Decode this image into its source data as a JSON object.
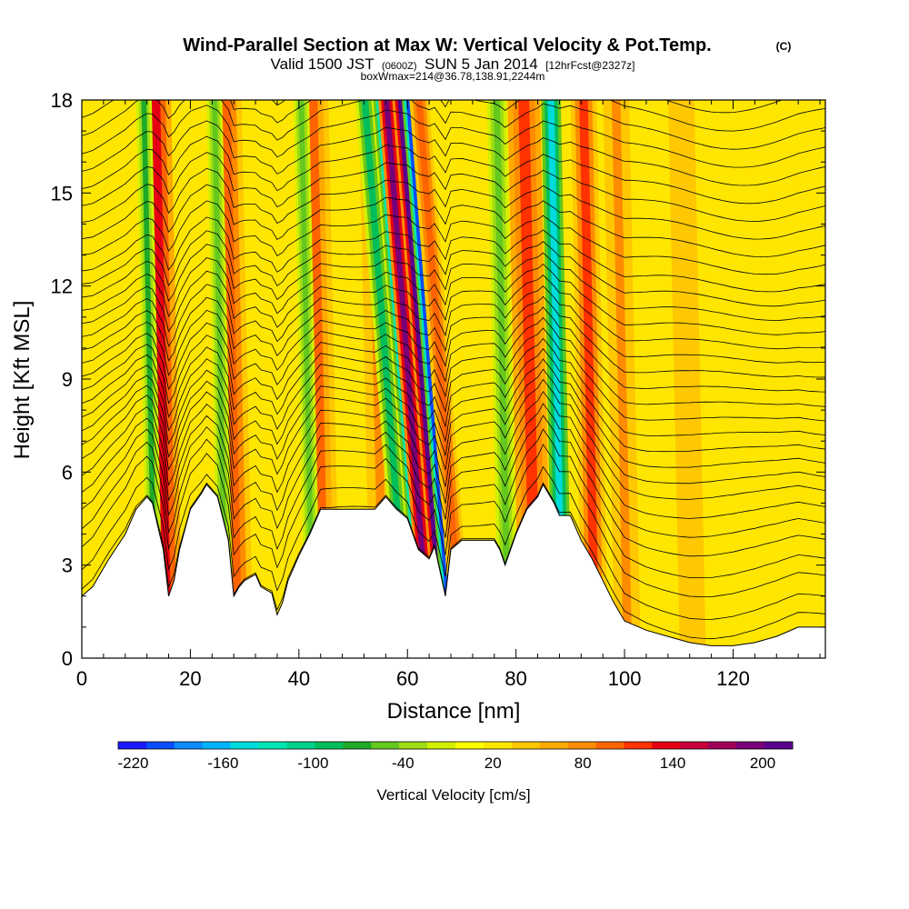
{
  "chart_data": {
    "type": "heatmap",
    "title": "Wind-Parallel Section at Max W: Vertical Velocity & Pot.Temp.",
    "title_mark": "(C)",
    "subtitle_parts": {
      "valid_label": "Valid 1500 JST",
      "utc": "(0600Z)",
      "date": "SUN 5 Jan 2014",
      "forecast": "[12hrFcst@2327z]"
    },
    "subtitle2": "boxWmax=214@36.78,138.91,2244m",
    "xlabel": "Distance [nm]",
    "ylabel": "Height [Kft MSL]",
    "xlim": [
      0,
      137
    ],
    "ylim": [
      0,
      18
    ],
    "x_ticks": [
      "0",
      "20",
      "40",
      "60",
      "80",
      "100",
      "120"
    ],
    "x_tick_values": [
      0,
      20,
      40,
      60,
      80,
      100,
      120
    ],
    "y_ticks": [
      "0",
      "3",
      "6",
      "9",
      "12",
      "15",
      "18"
    ],
    "y_tick_values": [
      0,
      3,
      6,
      9,
      12,
      15,
      18
    ],
    "colorbar": {
      "title": "Vertical Velocity [cm/s]",
      "labels": [
        "-220",
        "-160",
        "-100",
        "-40",
        "20",
        "80",
        "140",
        "200"
      ],
      "label_values": [
        -220,
        -160,
        -100,
        -40,
        20,
        80,
        140,
        200
      ],
      "range": [
        -230,
        220
      ],
      "colors": [
        "#1a1aff",
        "#0a4cff",
        "#0a8cff",
        "#00b4ff",
        "#00dcdc",
        "#00e6b4",
        "#00d28c",
        "#00be5a",
        "#1eaa28",
        "#64c81e",
        "#a0dc14",
        "#d2f000",
        "#ffff00",
        "#ffe600",
        "#ffc800",
        "#ffaa00",
        "#ff8c00",
        "#ff6400",
        "#ff3200",
        "#e60014",
        "#c8003c",
        "#a0005a",
        "#780078",
        "#5a008c"
      ]
    },
    "vertical_velocity_bands": [
      {
        "x": 15,
        "w": 130,
        "width": 2.5
      },
      {
        "x": 13,
        "w": -70,
        "width": 1.2
      },
      {
        "x": 28,
        "w": 100,
        "width": 2.5
      },
      {
        "x": 26,
        "w": -60,
        "width": 1.2
      },
      {
        "x": 44,
        "w": 90,
        "width": 2.5
      },
      {
        "x": 42,
        "w": -50,
        "width": 1.2
      },
      {
        "x": 55,
        "w": 70,
        "width": 2.0
      },
      {
        "x": 58,
        "w": -90,
        "width": 1.5
      },
      {
        "x": 61,
        "w": -200,
        "width": 1.2
      },
      {
        "x": 62,
        "w": 190,
        "width": 1.3
      },
      {
        "x": 64.5,
        "w": 210,
        "width": 1.2
      },
      {
        "x": 66,
        "w": -200,
        "width": 1.0
      },
      {
        "x": 68,
        "w": 100,
        "width": 1.5
      },
      {
        "x": 78,
        "w": -60,
        "width": 1.5
      },
      {
        "x": 83,
        "w": 120,
        "width": 2.5
      },
      {
        "x": 88,
        "w": -150,
        "width": 1.5
      },
      {
        "x": 94,
        "w": 110,
        "width": 2.0
      },
      {
        "x": 100,
        "w": 70,
        "width": 2.0
      },
      {
        "x": 112,
        "w": 50,
        "width": 3.0
      }
    ],
    "terrain": {
      "x": [
        0,
        2,
        5,
        8,
        10,
        12,
        13,
        15,
        16,
        17,
        18,
        20,
        22,
        23,
        25,
        27,
        28,
        29,
        30,
        32,
        33,
        35,
        36,
        37,
        38,
        40,
        42,
        44,
        46,
        48,
        50,
        52,
        54,
        56,
        58,
        60,
        62,
        64,
        65,
        66,
        67,
        68,
        70,
        72,
        74,
        76,
        77,
        78,
        80,
        82,
        84,
        85,
        86,
        87,
        88,
        90,
        92,
        94,
        96,
        98,
        100,
        104,
        108,
        112,
        116,
        120,
        124,
        128,
        132,
        137
      ],
      "h": [
        2.0,
        2.3,
        3.2,
        4.0,
        4.8,
        5.2,
        5.0,
        3.5,
        2.0,
        2.5,
        3.5,
        4.8,
        5.3,
        5.6,
        5.2,
        3.8,
        2.0,
        2.3,
        2.5,
        2.7,
        2.3,
        2.1,
        1.4,
        1.8,
        2.5,
        3.3,
        4.0,
        4.8,
        4.8,
        4.8,
        4.8,
        4.8,
        4.8,
        5.2,
        4.8,
        4.5,
        3.5,
        3.2,
        3.6,
        2.8,
        2.0,
        3.5,
        3.8,
        3.8,
        3.8,
        3.8,
        3.5,
        3.0,
        4.0,
        4.8,
        5.2,
        5.6,
        5.3,
        5.0,
        4.6,
        4.6,
        3.8,
        3.2,
        2.5,
        1.8,
        1.2,
        0.9,
        0.7,
        0.5,
        0.4,
        0.4,
        0.5,
        0.7,
        1.0,
        1.0
      ]
    },
    "potential_temperature_lines": {
      "base_heights": [
        0.4,
        1.0,
        1.7,
        2.3,
        3.0,
        3.6,
        4.2,
        4.8,
        5.3,
        5.8,
        6.3,
        6.8,
        7.3,
        7.8,
        8.3,
        8.8,
        9.3,
        9.8,
        10.3,
        10.8,
        11.3,
        11.8,
        12.4,
        13.0,
        13.6,
        14.2,
        14.8,
        15.4,
        16.0,
        16.6,
        17.2,
        17.8
      ]
    }
  }
}
